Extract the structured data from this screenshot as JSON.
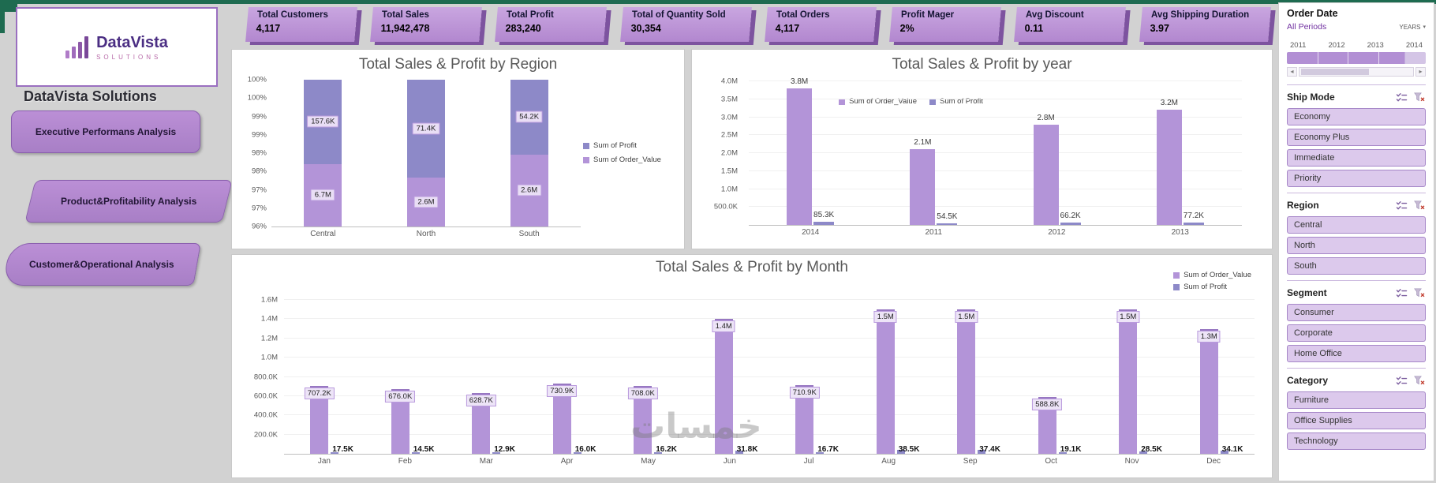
{
  "brand": {
    "logo_text": "DataVista",
    "logo_sub": "SOLUTIONS",
    "company": "DataVista Solutions"
  },
  "nav_buttons": [
    {
      "label": "Executive Performans Analysis"
    },
    {
      "label": "Product&Profitability Analysis"
    },
    {
      "label": "Customer&Operational Analysis"
    }
  ],
  "kpis": [
    {
      "label": "Total Customers",
      "value": "4,117"
    },
    {
      "label": "Total Sales",
      "value": "11,942,478"
    },
    {
      "label": "Total Profit",
      "value": "283,240"
    },
    {
      "label": "Total of Quantity Sold",
      "value": "30,354"
    },
    {
      "label": "Total Orders",
      "value": "4,117"
    },
    {
      "label": "Profit Mager",
      "value": "2%"
    },
    {
      "label": "Avg Discount",
      "value": "0.11"
    },
    {
      "label": "Avg Shipping Duration",
      "value": "3.97"
    }
  ],
  "watermark": "خمسات",
  "icons": {
    "dropdown": "▾",
    "scroll_left": "◂",
    "scroll_right": "▸"
  },
  "slicers": {
    "order_date": {
      "title": "Order Date",
      "period_label": "All Periods",
      "granularity": "YEARS",
      "years": [
        "2011",
        "2012",
        "2013",
        "2014"
      ]
    },
    "groups": [
      {
        "title": "Ship Mode",
        "items": [
          "Economy",
          "Economy Plus",
          "Immediate",
          "Priority"
        ]
      },
      {
        "title": "Region",
        "items": [
          "Central",
          "North",
          "South"
        ]
      },
      {
        "title": "Segment",
        "items": [
          "Consumer",
          "Corporate",
          "Home Office"
        ]
      },
      {
        "title": "Category",
        "items": [
          "Furniture",
          "Office Supplies",
          "Technology"
        ]
      }
    ]
  },
  "chart_data": [
    {
      "type": "bar",
      "variant": "stacked-100",
      "title": "Total Sales & Profit by Region",
      "categories": [
        "Central",
        "North",
        "South"
      ],
      "series": [
        {
          "name": "Sum of Order_Value",
          "values": [
            6700000,
            2600000,
            2600000
          ],
          "labels": [
            "6.7M",
            "2.6M",
            "2.6M"
          ],
          "color": "#b394d8"
        },
        {
          "name": "Sum of Profit",
          "values": [
            157600,
            71400,
            54200
          ],
          "labels": [
            "157.6K",
            "71.4K",
            "54.2K"
          ],
          "color": "#8d89c8"
        }
      ],
      "ylim": [
        96,
        100
      ],
      "ytick_labels": [
        "96%",
        "97%",
        "97%",
        "98%",
        "98%",
        "99%",
        "99%",
        "100%",
        "100%"
      ],
      "legend": [
        "Sum of Profit",
        "Sum of Order_Value"
      ],
      "legend_position": "right",
      "grid": false
    },
    {
      "type": "bar",
      "variant": "clustered",
      "title": "Total Sales & Profit by year",
      "categories": [
        "2014",
        "2011",
        "2012",
        "2013"
      ],
      "series": [
        {
          "name": "Sum of Order_Value",
          "values": [
            3800000,
            2100000,
            2800000,
            3200000
          ],
          "labels": [
            "3.8M",
            "2.1M",
            "2.8M",
            "3.2M"
          ],
          "color": "#b394d8"
        },
        {
          "name": "Sum of Profit",
          "values": [
            85300,
            54500,
            66200,
            77200
          ],
          "labels": [
            "85.3K",
            "54.5K",
            "66.2K",
            "77.2K"
          ],
          "color": "#8d89c8"
        }
      ],
      "ylim": [
        0,
        4000000
      ],
      "ytick_labels": [
        "500.0K",
        "1.0M",
        "1.5M",
        "2.0M",
        "2.5M",
        "3.0M",
        "3.5M",
        "4.0M"
      ],
      "legend": [
        "Sum of Order_Value",
        "Sum of Profit"
      ],
      "legend_position": "top",
      "grid": true
    },
    {
      "type": "bar",
      "variant": "clustered",
      "title": "Total Sales & Profit by Month",
      "categories": [
        "Jan",
        "Feb",
        "Mar",
        "Apr",
        "May",
        "Jun",
        "Jul",
        "Aug",
        "Sep",
        "Oct",
        "Nov",
        "Dec"
      ],
      "series": [
        {
          "name": "Sum of Order_Value",
          "values": [
            707200,
            676000,
            628700,
            730900,
            708000,
            1400000,
            710900,
            1500000,
            1500000,
            588800,
            1500000,
            1300000
          ],
          "labels": [
            "707.2K",
            "676.0K",
            "628.7K",
            "730.9K",
            "708.0K",
            "1.4M",
            "710.9K",
            "1.5M",
            "1.5M",
            "588.8K",
            "1.5M",
            "1.3M"
          ],
          "color": "#b394d8"
        },
        {
          "name": "Sum of Profit",
          "values": [
            17500,
            14500,
            12900,
            16000,
            16200,
            31800,
            16700,
            38500,
            37400,
            19100,
            28500,
            34100
          ],
          "labels": [
            "17.5K",
            "14.5K",
            "12.9K",
            "16.0K",
            "16.2K",
            "31.8K",
            "16.7K",
            "38.5K",
            "37.4K",
            "19.1K",
            "28.5K",
            "34.1K"
          ],
          "color": "#8d89c8"
        }
      ],
      "ylim": [
        0,
        1600000
      ],
      "ytick_labels": [
        "200.0K",
        "400.0K",
        "600.0K",
        "800.0K",
        "1.0M",
        "1.2M",
        "1.4M",
        "1.6M"
      ],
      "legend": [
        "Sum of Order_Value",
        "Sum of Profit"
      ],
      "legend_position": "top-right",
      "grid": true
    }
  ],
  "colors": {
    "order_value": "#b394d8",
    "profit": "#8d89c8",
    "kpi_fill": "#b98fd3",
    "kpi_shadow": "#7d539f",
    "accent": "#7030a0",
    "green_strip": "#1e6b50",
    "slicer_item": "#dcc9ec"
  }
}
